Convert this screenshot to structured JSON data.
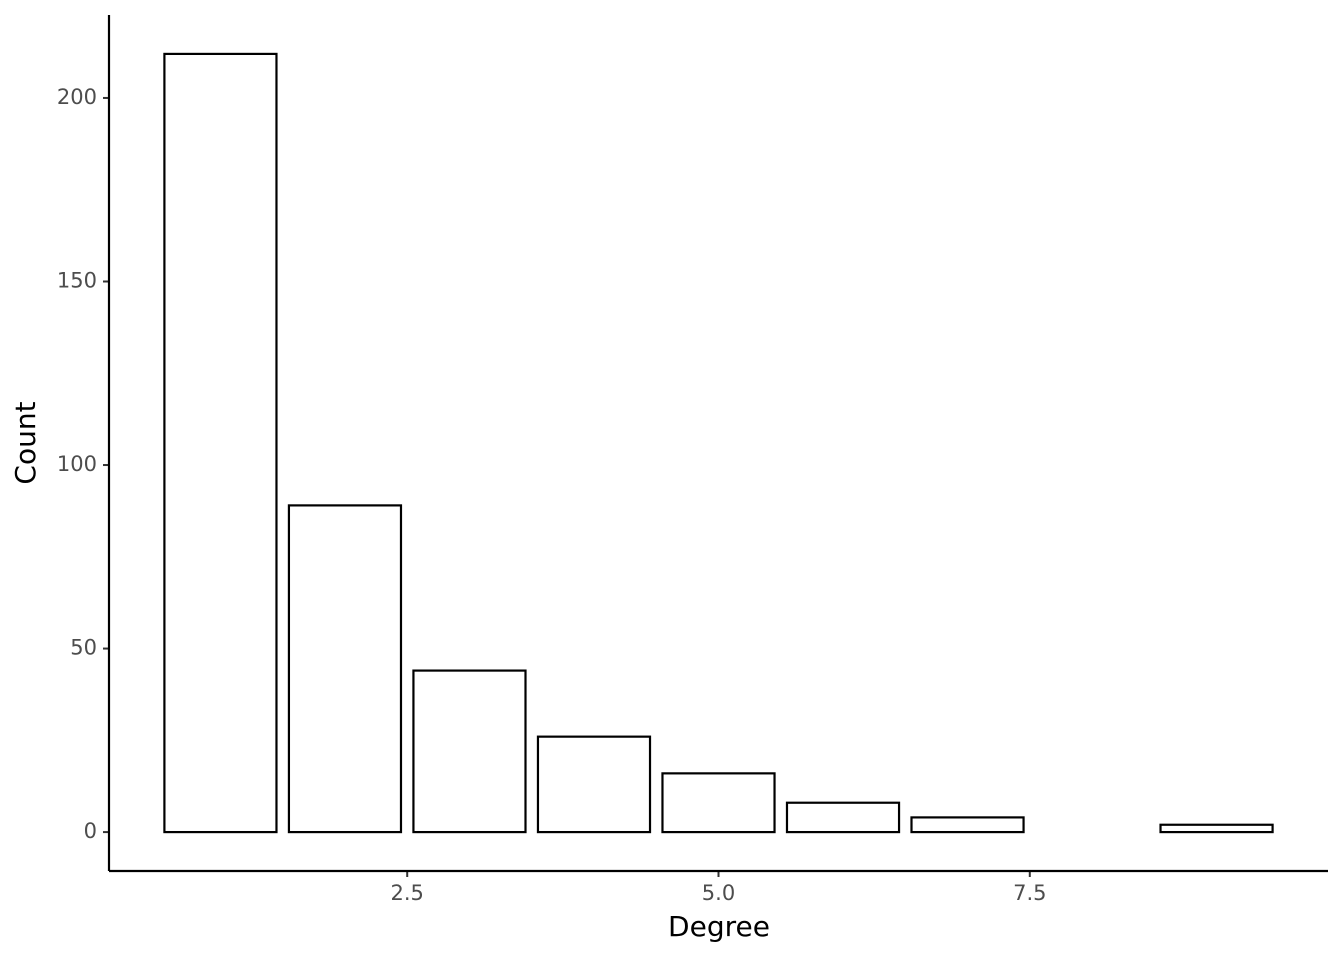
{
  "chart_data": {
    "type": "bar",
    "x": [
      1,
      2,
      3,
      4,
      5,
      6,
      7,
      9
    ],
    "values": [
      212,
      89,
      44,
      26,
      16,
      8,
      4,
      2
    ],
    "fill": "#ffffff",
    "color": "#000000",
    "xlabel": "Degree",
    "ylabel": "Count",
    "xlim": [
      0.105,
      9.895
    ],
    "xticks": [
      2.5,
      {
        "value": 5,
        "label": "5.0"
      },
      7.5
    ],
    "ylim": [
      -10.6,
      222.6
    ],
    "yticks": [
      0,
      50,
      100,
      150,
      200
    ],
    "grid": false
  }
}
